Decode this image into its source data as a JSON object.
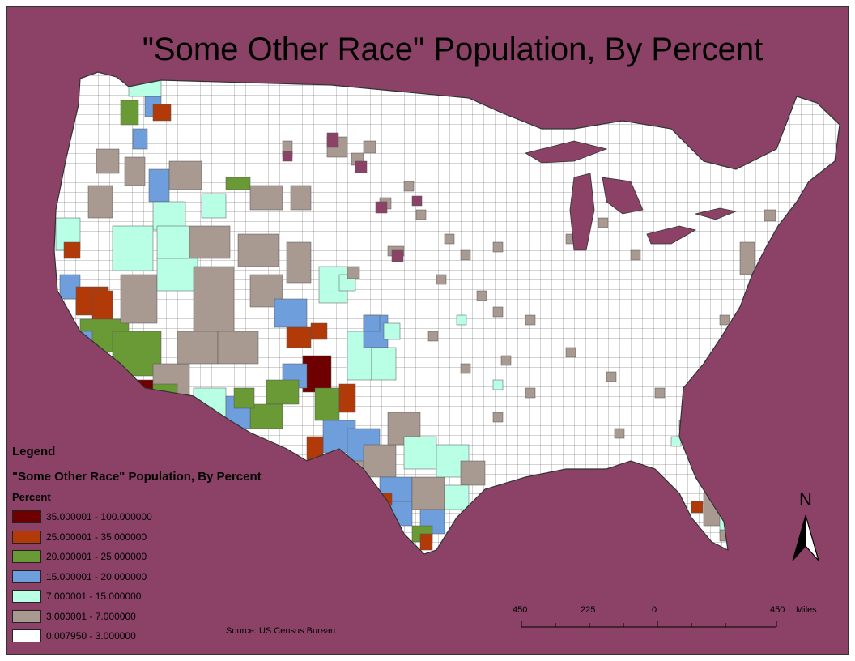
{
  "title": "\"Some Other Race\" Population, By Percent",
  "colors": {
    "background": "#8B4266",
    "white": "#FFFFFF",
    "c3_7": "#A89A90",
    "c7_15": "#B8FFE6",
    "c15_20": "#6E9EDC",
    "c20_25": "#6A9A36",
    "c25_35": "#B23A08",
    "c35_100": "#6E0000"
  },
  "legend": {
    "heading": "Legend",
    "subtitle": "\"Some Other Race\" Population, By Percent",
    "field": "Percent",
    "classes": [
      {
        "label": "35.000001 - 100.000000",
        "color": "#6E0000"
      },
      {
        "label": "25.000001 - 35.000000",
        "color": "#B23A08"
      },
      {
        "label": "20.000001 - 25.000000",
        "color": "#6A9A36"
      },
      {
        "label": "15.000001 - 20.000000",
        "color": "#6E9EDC"
      },
      {
        "label": "7.000001 - 15.000000",
        "color": "#B8FFE6"
      },
      {
        "label": "3.000001 - 7.000000",
        "color": "#A89A90"
      },
      {
        "label": "0.007950 - 3.000000",
        "color": "#FFFFFF"
      }
    ]
  },
  "source": "Source: US Census Bureau",
  "north_arrow": {
    "letter": "N",
    "icon": "north-arrow-icon"
  },
  "scale_bar": {
    "labels": [
      "450",
      "225",
      "0",
      "450"
    ],
    "unit": "Miles"
  }
}
